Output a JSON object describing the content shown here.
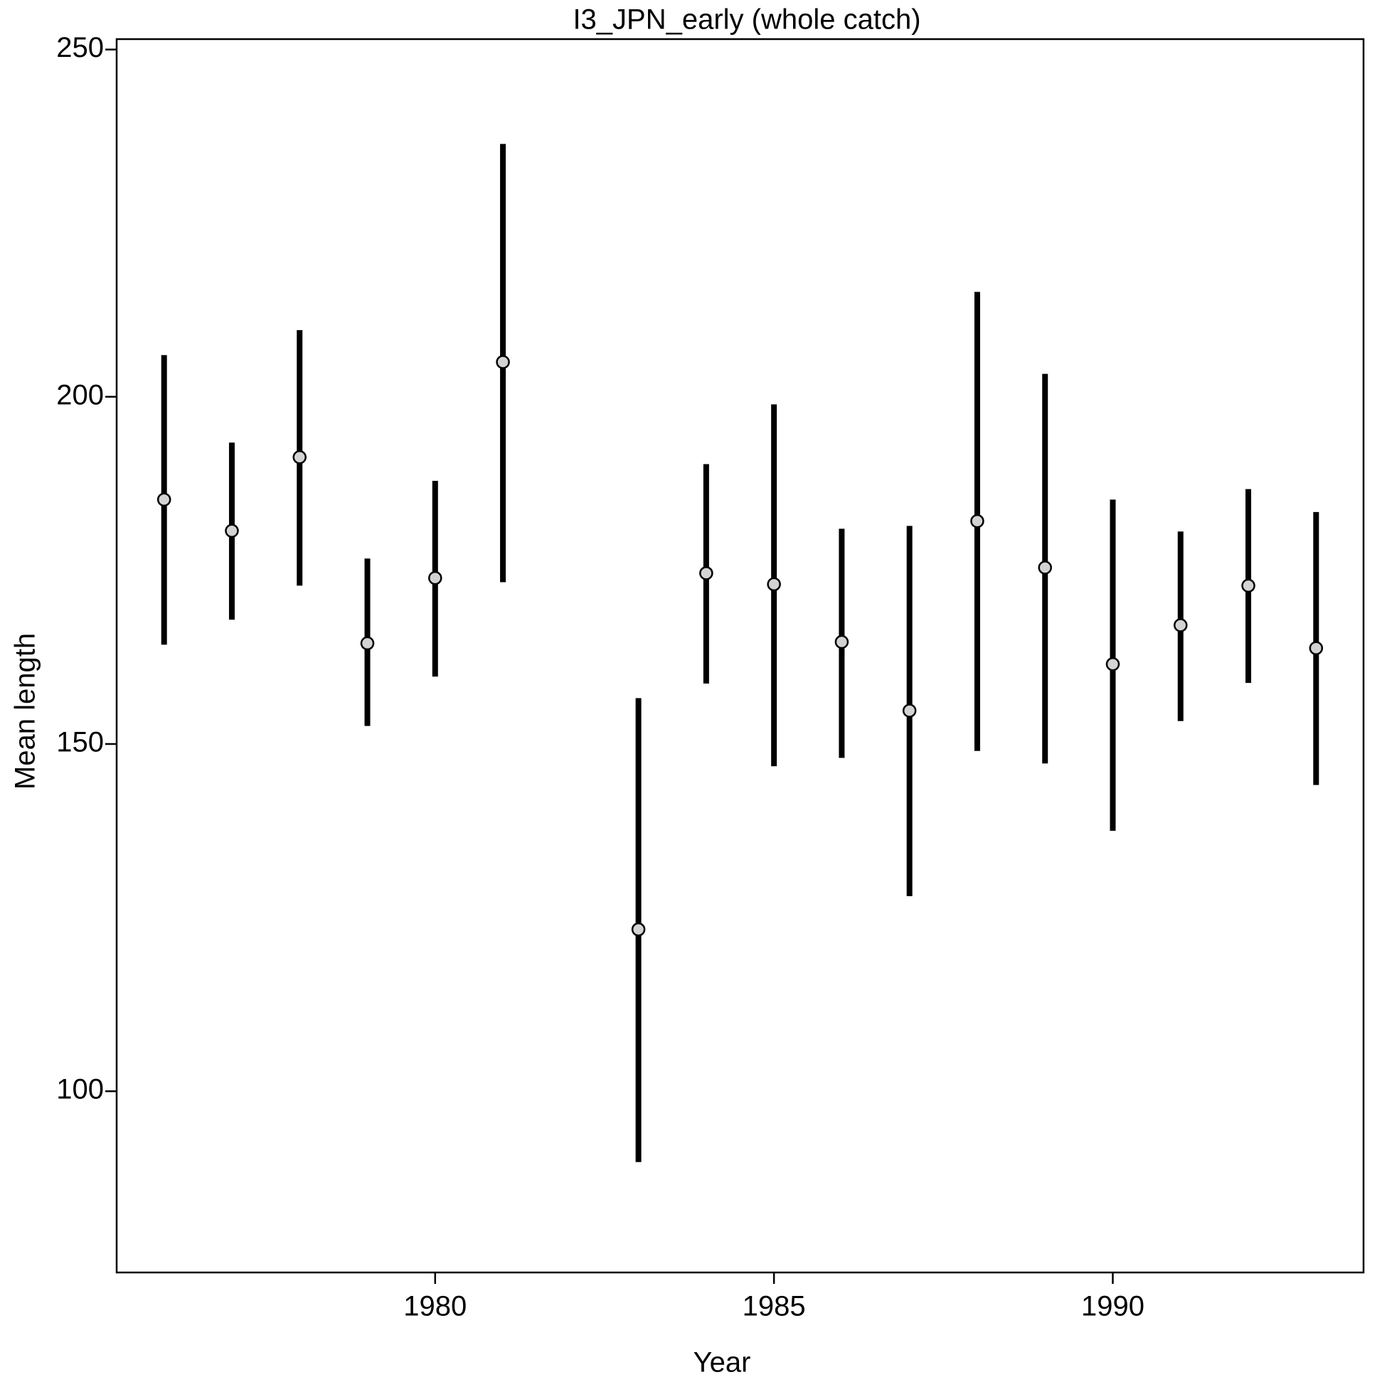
{
  "chart_data": {
    "type": "errorbar",
    "title": "I3_JPN_early (whole catch)",
    "x_label": "Year",
    "y_label": "Mean length",
    "x": [
      1976,
      1977,
      1978,
      1979,
      1980,
      1981,
      1983,
      1984,
      1985,
      1986,
      1987,
      1988,
      1989,
      1990,
      1991,
      1992,
      1993
    ],
    "series": [
      {
        "color": "#d3d3d3",
        "bar_color": "#000000",
        "values": [
          185.2,
          180.7,
          191.3,
          164.5,
          173.9,
          205.0,
          123.3,
          174.6,
          173.0,
          164.7,
          154.8,
          182.1,
          175.4,
          161.5,
          167.1,
          172.8,
          163.8
        ],
        "lower": [
          164.3,
          167.9,
          172.8,
          152.6,
          159.7,
          173.3,
          89.8,
          158.7,
          146.8,
          148.0,
          128.1,
          149.0,
          147.2,
          137.5,
          153.3,
          158.8,
          144.1
        ],
        "upper": [
          206.0,
          193.4,
          209.6,
          176.7,
          187.9,
          236.4,
          156.6,
          190.3,
          198.9,
          181.0,
          181.4,
          215.1,
          203.3,
          185.2,
          180.6,
          186.7,
          183.4
        ]
      }
    ],
    "xlim": [
      1975.3,
      1993.7
    ],
    "xticks": [
      1980,
      1985,
      1990
    ],
    "ylim": [
      73.9,
      251.5
    ],
    "yticks": [
      100,
      150,
      200,
      250
    ]
  }
}
